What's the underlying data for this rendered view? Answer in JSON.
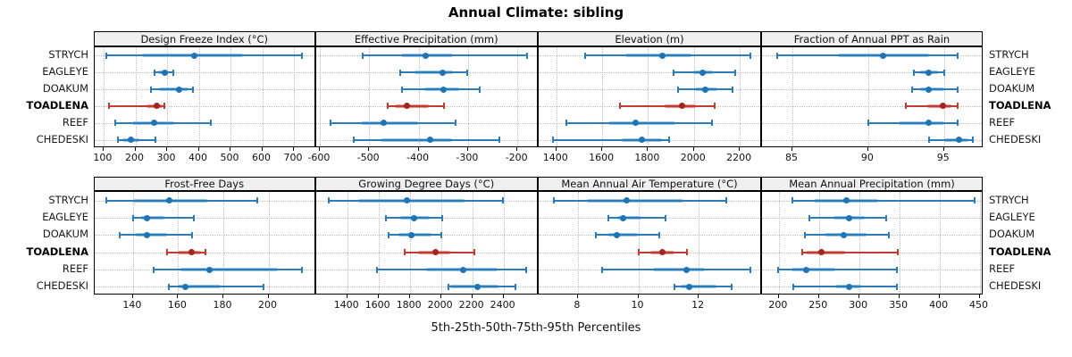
{
  "title": "Annual Climate: sibling",
  "footer": "5th-25th-50th-75th-95th Percentiles",
  "colors": {
    "normal_line": "#2b7cb8",
    "normal_band": "#9cc8e4",
    "normal_dot": "#1f74b4",
    "highlight_line": "#c13b31",
    "highlight_band": "#e59a92",
    "highlight_dot": "#a52420",
    "strip_bg": "#efefef",
    "grid": "#bcbcbc",
    "border": "#000000"
  },
  "chart_data": {
    "type": "scatter",
    "subtype": "trellis-percentile-dotplot",
    "title": "Annual Climate: sibling",
    "xlabel": "5th-25th-50th-75th-95th Percentiles",
    "legend_position": "none",
    "grid": "dotted",
    "categories": [
      "STRYCH",
      "EAGLEYE",
      "DOAKUM",
      "TOADLENA",
      "REEF",
      "CHEDESKI"
    ],
    "percentile_labels": [
      "5th",
      "25th",
      "50th",
      "75th",
      "95th"
    ],
    "highlight": "TOADLENA",
    "panels": [
      {
        "title": "Design Freeze Index (°C)",
        "row": 0,
        "col": 0,
        "xlim": [
          72,
          769
        ],
        "ticks": [
          100,
          200,
          300,
          400,
          500,
          600,
          700
        ],
        "values": {
          "STRYCH": [
            109,
            222,
            385,
            540,
            724
          ],
          "EAGLEYE": [
            260,
            272,
            292,
            307,
            319
          ],
          "DOAKUM": [
            248,
            274,
            339,
            368,
            382
          ],
          "TOADLENA": [
            116,
            234,
            268,
            285,
            292
          ],
          "REEF": [
            136,
            189,
            258,
            323,
            438
          ],
          "CHEDESKI": [
            145,
            158,
            187,
            212,
            262
          ]
        }
      },
      {
        "title": "Effective Precipitation (mm)",
        "row": 0,
        "col": 1,
        "xlim": [
          -608,
          -157
        ],
        "ticks": [
          -600,
          -500,
          -400,
          -300,
          -200
        ],
        "values": {
          "STRYCH": [
            -514,
            -436,
            -386,
            -330,
            -180
          ],
          "EAGLEYE": [
            -437,
            -409,
            -352,
            -331,
            -301
          ],
          "DOAKUM": [
            -434,
            -389,
            -349,
            -317,
            -277
          ],
          "TOADLENA": [
            -463,
            -449,
            -423,
            -380,
            -348
          ],
          "REEF": [
            -579,
            -516,
            -470,
            -401,
            -326
          ],
          "CHEDESKI": [
            -531,
            -477,
            -376,
            -332,
            -236
          ]
        }
      },
      {
        "title": "Elevation (m)",
        "row": 0,
        "col": 2,
        "xlim": [
          1323,
          2297
        ],
        "ticks": [
          1400,
          1600,
          1800,
          2000,
          2200
        ],
        "values": {
          "STRYCH": [
            1526,
            1699,
            1861,
            1991,
            2248
          ],
          "EAGLEYE": [
            1913,
            1997,
            2039,
            2082,
            2179
          ],
          "DOAKUM": [
            1929,
            2004,
            2049,
            2104,
            2170
          ],
          "TOADLENA": [
            1679,
            1874,
            1949,
            2010,
            2092
          ],
          "REEF": [
            1443,
            1627,
            1744,
            1919,
            2079
          ],
          "CHEDESKI": [
            1387,
            1686,
            1773,
            1861,
            1891
          ]
        }
      },
      {
        "title": "Fraction of Annual PPT as Rain",
        "row": 0,
        "col": 3,
        "xlim": [
          83,
          97.6
        ],
        "ticks": [
          85,
          90,
          95
        ],
        "values": {
          "STRYCH": [
            84,
            88,
            91,
            94,
            95.9
          ],
          "EAGLEYE": [
            93,
            93.4,
            94,
            94.6,
            95
          ],
          "DOAKUM": [
            92.9,
            93.4,
            94,
            95,
            95.9
          ],
          "TOADLENA": [
            92.5,
            93.9,
            94.9,
            95.5,
            95.9
          ],
          "REEF": [
            90,
            92,
            94,
            95,
            95.9
          ],
          "CHEDESKI": [
            94,
            95,
            96,
            96.6,
            96.9
          ]
        }
      },
      {
        "title": "Frost-Free Days",
        "row": 1,
        "col": 0,
        "xlim": [
          123,
          221
        ],
        "ticks": [
          140,
          160,
          180,
          200
        ],
        "values": {
          "STRYCH": [
            128,
            140,
            156,
            173,
            195
          ],
          "EAGLEYE": [
            140,
            143,
            146,
            154,
            167
          ],
          "DOAKUM": [
            134,
            141,
            146,
            155,
            166
          ],
          "TOADLENA": [
            155,
            160,
            166,
            170,
            172
          ],
          "REEF": [
            149,
            161,
            174,
            204,
            215
          ],
          "CHEDESKI": [
            156,
            160,
            163,
            179,
            198
          ]
        }
      },
      {
        "title": "Growing Degree Days (°C)",
        "row": 1,
        "col": 1,
        "xlim": [
          1199,
          2625
        ],
        "ticks": [
          1400,
          1600,
          1800,
          2000,
          2200,
          2400
        ],
        "values": {
          "STRYCH": [
            1280,
            1470,
            1780,
            2150,
            2398
          ],
          "EAGLEYE": [
            1650,
            1737,
            1825,
            1928,
            2008
          ],
          "DOAKUM": [
            1667,
            1728,
            1813,
            1937,
            2004
          ],
          "TOADLENA": [
            1770,
            1853,
            1963,
            2057,
            2212
          ],
          "REEF": [
            1589,
            1903,
            2141,
            2360,
            2547
          ],
          "CHEDESKI": [
            2046,
            2061,
            2231,
            2370,
            2478
          ]
        }
      },
      {
        "title": "Mean Annual Air Temperature (°C)",
        "row": 1,
        "col": 2,
        "xlim": [
          6.7,
          14.1
        ],
        "ticks": [
          8,
          10,
          12
        ],
        "values": {
          "STRYCH": [
            7.2,
            8.3,
            9.6,
            11.5,
            12.9
          ],
          "EAGLEYE": [
            9.0,
            9.3,
            9.5,
            10.1,
            10.9
          ],
          "DOAKUM": [
            8.6,
            9.0,
            9.3,
            10.0,
            10.7
          ],
          "TOADLENA": [
            10.0,
            10.4,
            10.8,
            11.2,
            11.6
          ],
          "REEF": [
            8.8,
            10.5,
            11.6,
            12.2,
            13.7
          ],
          "CHEDESKI": [
            11.2,
            11.4,
            11.7,
            12.6,
            13.1
          ]
        }
      },
      {
        "title": "Mean Annual Precipitation (mm)",
        "row": 1,
        "col": 3,
        "xlim": [
          179,
          455
        ],
        "ticks": [
          200,
          250,
          300,
          350,
          400,
          450
        ],
        "values": {
          "STRYCH": [
            217,
            243,
            284,
            324,
            444
          ],
          "EAGLEYE": [
            238,
            268,
            287,
            307,
            334
          ],
          "DOAKUM": [
            232,
            257,
            281,
            309,
            337
          ],
          "TOADLENA": [
            229,
            234,
            253,
            283,
            348
          ],
          "REEF": [
            199,
            216,
            234,
            270,
            347
          ],
          "CHEDESKI": [
            218,
            270,
            287,
            303,
            347
          ]
        }
      }
    ]
  }
}
